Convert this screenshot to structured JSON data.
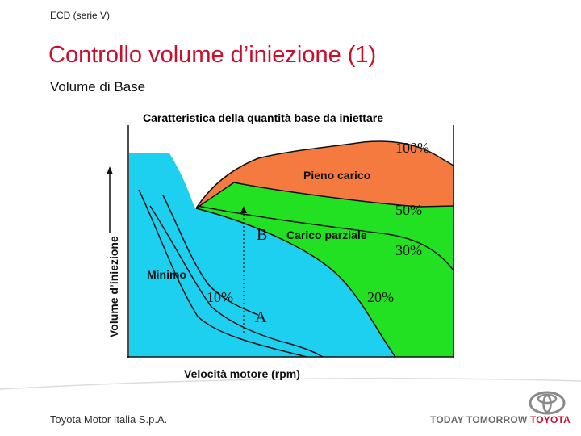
{
  "header": {
    "section_label": "ECD (serie V)",
    "title": "Controllo volume d’iniezione (1)",
    "subtitle": "Volume di Base"
  },
  "diagram": {
    "title": "Caratteristica della quantità base da iniettare",
    "x_axis_label": "Velocità motore (rpm)",
    "y_axis_label": "Volume d’iniezione",
    "region_labels": {
      "full_load": "Pieno carico",
      "partial_load": "Carico parziale",
      "idle": "Minimo"
    },
    "percent_labels": {
      "p100": "100%",
      "p50": "50%",
      "p30": "30%",
      "p20": "20%",
      "p10": "10%"
    },
    "point_labels": {
      "a": "A",
      "b": "B"
    },
    "colors": {
      "full_load_region": "#f47a40",
      "partial_load_region": "#22e022",
      "idle_region": "#1ed0f0",
      "outline": "#111111"
    }
  },
  "footer": {
    "company": "Toyota Motor Italia S.p.A.",
    "tagline_today": "TODAY",
    "tagline_tomorrow": "TOMORROW",
    "tagline_brand": "TOYOTA"
  },
  "colors": {
    "accent": "#c8102e"
  }
}
